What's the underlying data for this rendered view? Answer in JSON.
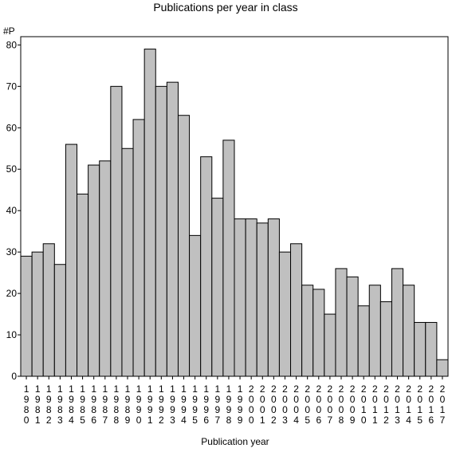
{
  "chart_data": {
    "type": "bar",
    "title": "Publications per year in class",
    "xlabel": "Publication year",
    "ylabel": "#P",
    "ylim": [
      0,
      82
    ],
    "yticks": [
      0,
      10,
      20,
      30,
      40,
      50,
      60,
      70,
      80
    ],
    "grid": false,
    "bar_color": "#c0c0c0",
    "categories": [
      "1980",
      "1981",
      "1982",
      "1983",
      "1984",
      "1985",
      "1986",
      "1987",
      "1988",
      "1989",
      "1990",
      "1991",
      "1992",
      "1993",
      "1994",
      "1995",
      "1996",
      "1997",
      "1998",
      "1999",
      "2000",
      "2001",
      "2002",
      "2003",
      "2004",
      "2005",
      "2006",
      "2007",
      "2008",
      "2009",
      "2010",
      "2011",
      "2012",
      "2013",
      "2014",
      "2015",
      "2016",
      "2017"
    ],
    "values": [
      29,
      30,
      32,
      27,
      56,
      44,
      51,
      52,
      70,
      55,
      62,
      79,
      70,
      71,
      63,
      34,
      53,
      43,
      57,
      38,
      38,
      37,
      38,
      30,
      32,
      22,
      21,
      15,
      26,
      24,
      17,
      22,
      18,
      26,
      22,
      13,
      13,
      4
    ]
  }
}
